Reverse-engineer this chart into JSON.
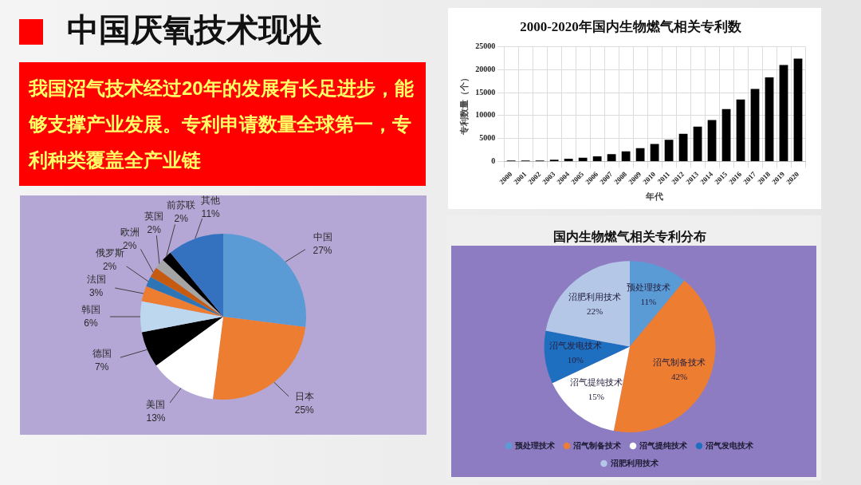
{
  "chart_data": [
    {
      "type": "other",
      "title": "中国厌氧技术现状",
      "subtitle": "我国沼气技术经过20年的发展有长足进步，能够支撑产业发展。专利申请数量全球第一，专利种类覆盖全产业链"
    },
    {
      "type": "bar",
      "title": "2000-2020年国内生物燃气相关专利数",
      "xlabel": "年代",
      "ylabel": "专利数量（个）",
      "categories": [
        "2000",
        "2001",
        "2002",
        "2003",
        "2004",
        "2005",
        "2006",
        "2007",
        "2008",
        "2009",
        "2010",
        "2011",
        "2012",
        "2013",
        "2014",
        "2015",
        "2016",
        "2017",
        "2018",
        "2019",
        "2020"
      ],
      "values": [
        200,
        200,
        200,
        400,
        600,
        800,
        1100,
        1600,
        2200,
        2900,
        3800,
        4700,
        6000,
        7600,
        9000,
        11400,
        13500,
        15800,
        18300,
        21000,
        22400
      ],
      "color": "#000000",
      "ylim": [
        0,
        25000
      ],
      "yticks": [
        0,
        5000,
        10000,
        15000,
        20000,
        25000
      ],
      "grid": true
    },
    {
      "type": "pie",
      "categories": [
        "中国",
        "日本",
        "美国",
        "德国",
        "韩国",
        "法国",
        "俄罗斯",
        "欧洲",
        "英国",
        "前苏联",
        "其他"
      ],
      "values": [
        27,
        25,
        13,
        7,
        6,
        3,
        2,
        2,
        2,
        2,
        11
      ],
      "value_labels": [
        "27%",
        "25%",
        "13%",
        "7%",
        "6%",
        "3%",
        "2%",
        "2%",
        "2%",
        "2%",
        "11%"
      ],
      "colors": [
        "#5b9bd5",
        "#ed7d31",
        "#ffffff",
        "#000000",
        "#bdd7ee",
        "#ed7d31",
        "#2e75b6",
        "#c55a11",
        "#a5a5a5",
        "#000000",
        "#3472c0"
      ]
    },
    {
      "type": "pie",
      "title": "国内生物燃气相关专利分布",
      "categories": [
        "预处理技术",
        "沼气制备技术",
        "沼气提纯技术",
        "沼气发电技术",
        "沼肥利用技术"
      ],
      "values": [
        11,
        42,
        15,
        10,
        22
      ],
      "value_labels": [
        "11%",
        "42%",
        "15%",
        "10%",
        "22%"
      ],
      "colors": [
        "#5b9bd5",
        "#ed7d31",
        "#ffffff",
        "#1f6fc0",
        "#b4c7e7"
      ],
      "legend": "bottom"
    }
  ]
}
